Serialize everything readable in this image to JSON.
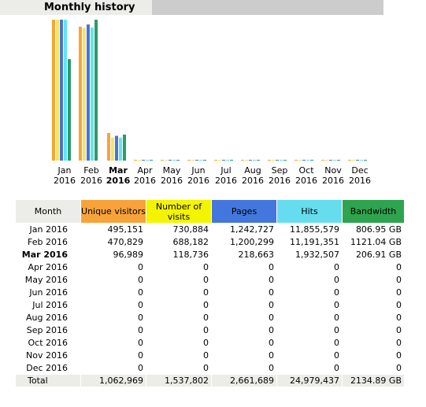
{
  "section_title": "Monthly history",
  "chart_data": {
    "type": "bar",
    "categories": [
      "Jan 2016",
      "Feb 2016",
      "Mar 2016",
      "Apr 2016",
      "May 2016",
      "Jun 2016",
      "Jul 2016",
      "Aug 2016",
      "Sep 2016",
      "Oct 2016",
      "Nov 2016",
      "Dec 2016"
    ],
    "series": [
      {
        "name": "Unique visitors",
        "color": "#f8a33a",
        "values": [
          495151,
          470829,
          96989,
          0,
          0,
          0,
          0,
          0,
          0,
          0,
          0,
          0
        ]
      },
      {
        "name": "Number of visits",
        "color": "#f0e566",
        "values": [
          730884,
          688182,
          118736,
          0,
          0,
          0,
          0,
          0,
          0,
          0,
          0,
          0
        ]
      },
      {
        "name": "Pages",
        "color": "#4f6fd6",
        "values": [
          1242727,
          1200299,
          218663,
          0,
          0,
          0,
          0,
          0,
          0,
          0,
          0,
          0
        ]
      },
      {
        "name": "Hits",
        "color": "#5ee6ee",
        "values": [
          11855579,
          11191351,
          1932507,
          0,
          0,
          0,
          0,
          0,
          0,
          0,
          0,
          0
        ]
      },
      {
        "name": "Bandwidth",
        "unit": "GB",
        "color": "#2f9a6a",
        "values": [
          806.95,
          1121.04,
          206.91,
          0,
          0,
          0,
          0,
          0,
          0,
          0,
          0,
          0
        ]
      }
    ]
  },
  "month_labels": [
    {
      "month": "Jan",
      "year": "2016"
    },
    {
      "month": "Feb",
      "year": "2016"
    },
    {
      "month": "Mar",
      "year": "2016"
    },
    {
      "month": "Apr",
      "year": "2016"
    },
    {
      "month": "May",
      "year": "2016"
    },
    {
      "month": "Jun",
      "year": "2016"
    },
    {
      "month": "Jul",
      "year": "2016"
    },
    {
      "month": "Aug",
      "year": "2016"
    },
    {
      "month": "Sep",
      "year": "2016"
    },
    {
      "month": "Oct",
      "year": "2016"
    },
    {
      "month": "Nov",
      "year": "2016"
    },
    {
      "month": "Dec",
      "year": "2016"
    }
  ],
  "current_month_index": 2,
  "table": {
    "headers": [
      {
        "label": "Month",
        "color": "#ecece9"
      },
      {
        "label": "Unique visitors",
        "color": "#f8a33a"
      },
      {
        "label": "Number of visits",
        "color": "#f4f400"
      },
      {
        "label": "Pages",
        "color": "#4477dd"
      },
      {
        "label": "Hits",
        "color": "#66ddee"
      },
      {
        "label": "Bandwidth",
        "color": "#2ea44f"
      }
    ],
    "rows": [
      [
        "Jan 2016",
        "495,151",
        "730,884",
        "1,242,727",
        "11,855,579",
        "806.95 GB"
      ],
      [
        "Feb 2016",
        "470,829",
        "688,182",
        "1,200,299",
        "11,191,351",
        "1121.04 GB"
      ],
      [
        "Mar 2016",
        "96,989",
        "118,736",
        "218,663",
        "1,932,507",
        "206.91 GB"
      ],
      [
        "Apr 2016",
        "0",
        "0",
        "0",
        "0",
        "0"
      ],
      [
        "May 2016",
        "0",
        "0",
        "0",
        "0",
        "0"
      ],
      [
        "Jun 2016",
        "0",
        "0",
        "0",
        "0",
        "0"
      ],
      [
        "Jul 2016",
        "0",
        "0",
        "0",
        "0",
        "0"
      ],
      [
        "Aug 2016",
        "0",
        "0",
        "0",
        "0",
        "0"
      ],
      [
        "Sep 2016",
        "0",
        "0",
        "0",
        "0",
        "0"
      ],
      [
        "Oct 2016",
        "0",
        "0",
        "0",
        "0",
        "0"
      ],
      [
        "Nov 2016",
        "0",
        "0",
        "0",
        "0",
        "0"
      ],
      [
        "Dec 2016",
        "0",
        "0",
        "0",
        "0",
        "0"
      ]
    ],
    "total": [
      "Total",
      "1,062,969",
      "1,537,802",
      "2,661,689",
      "24,979,437",
      "2134.89 GB"
    ]
  }
}
